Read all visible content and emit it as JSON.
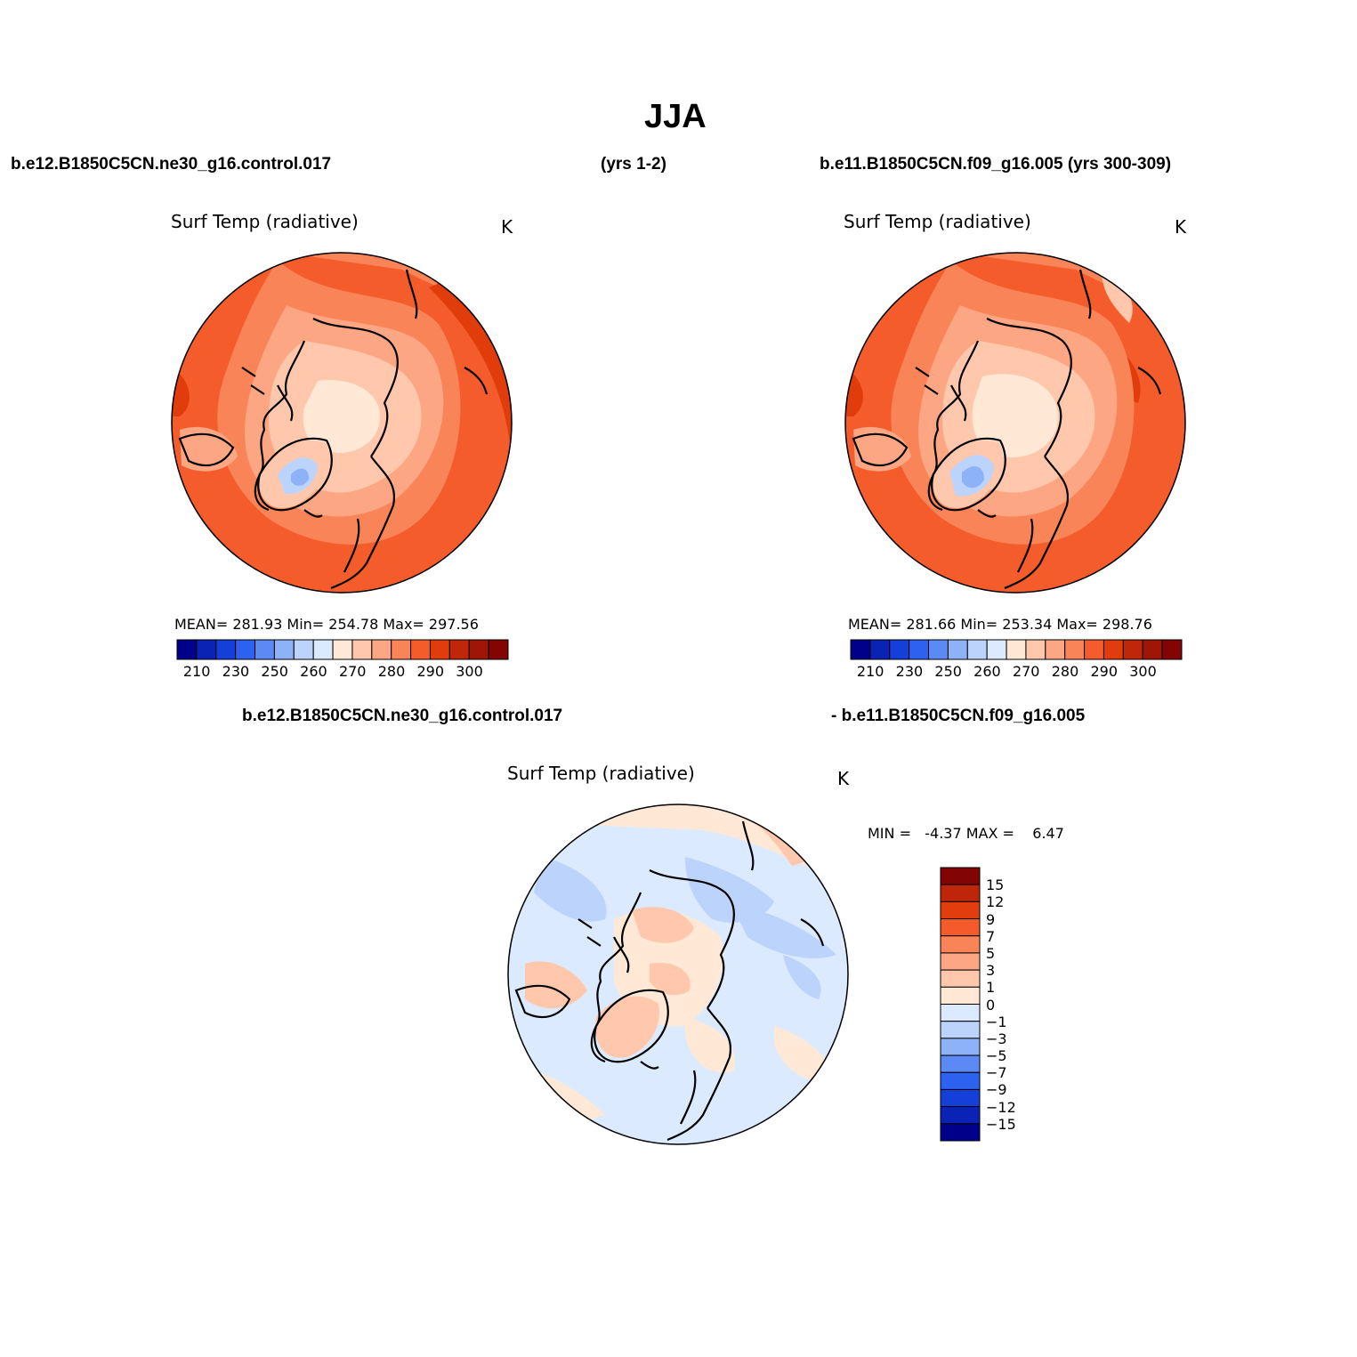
{
  "header": {
    "season": "JJA",
    "case_left": "b.e12.B1850C5CN.ne30_g16.control.017",
    "case_left_years": "(yrs 1-2)",
    "case_right": "b.e11.B1850C5CN.f09_g16.005 (yrs 300-309)",
    "diff_left": "b.e12.B1850C5CN.ne30_g16.control.017",
    "diff_right": "- b.e11.B1850C5CN.f09_g16.005"
  },
  "panels": {
    "left": {
      "title": "Surf Temp (radiative)",
      "units": "K",
      "stats": "MEAN= 281.93   Min= 254.78   Max= 297.56"
    },
    "right": {
      "title": "Surf Temp (radiative)",
      "units": "K",
      "stats": "MEAN= 281.66   Min= 253.34   Max= 298.76"
    },
    "diff": {
      "title": "Surf Temp (radiative)",
      "units": "K",
      "minmax": "MIN =   -4.37 MAX =    6.47"
    }
  },
  "colorbar_abs": {
    "colors": [
      "#00008b",
      "#0a23b4",
      "#1440d9",
      "#2d62f0",
      "#5c8af5",
      "#8eb2f8",
      "#bcd3fb",
      "#dbeafe",
      "#ffe8d6",
      "#ffc8ac",
      "#fca683",
      "#f98458",
      "#f55c2c",
      "#e03c0c",
      "#c02708",
      "#a01606",
      "#820404"
    ],
    "tick_labels": [
      "210",
      "230",
      "250",
      "260",
      "270",
      "280",
      "290",
      "300"
    ]
  },
  "colorbar_diff": {
    "colors": [
      "#820404",
      "#bf2508",
      "#e23d0c",
      "#f55a2a",
      "#f98458",
      "#fca683",
      "#ffc8ac",
      "#ffe8d6",
      "#dbeafe",
      "#bcd3fb",
      "#8eb2f8",
      "#5c8af5",
      "#2d62f0",
      "#1440d9",
      "#0a23b4",
      "#00008b"
    ],
    "tick_labels": [
      "15",
      "12",
      "9",
      "7",
      "5",
      "3",
      "1",
      "0",
      "−1",
      "−3",
      "−5",
      "−7",
      "−9",
      "−12",
      "−15"
    ]
  },
  "map_colors": {
    "warm_outer": "#f55c2c",
    "warm_edge": "#e03c0c",
    "warm_mid": "#f98458",
    "warm_light": "#fca683",
    "pale": "#ffc8ac",
    "cream": "#ffe8d6",
    "light_blue": "#dbeafe",
    "blue": "#bcd3fb",
    "mid_blue": "#8eb2f8",
    "coast": "#000000"
  }
}
